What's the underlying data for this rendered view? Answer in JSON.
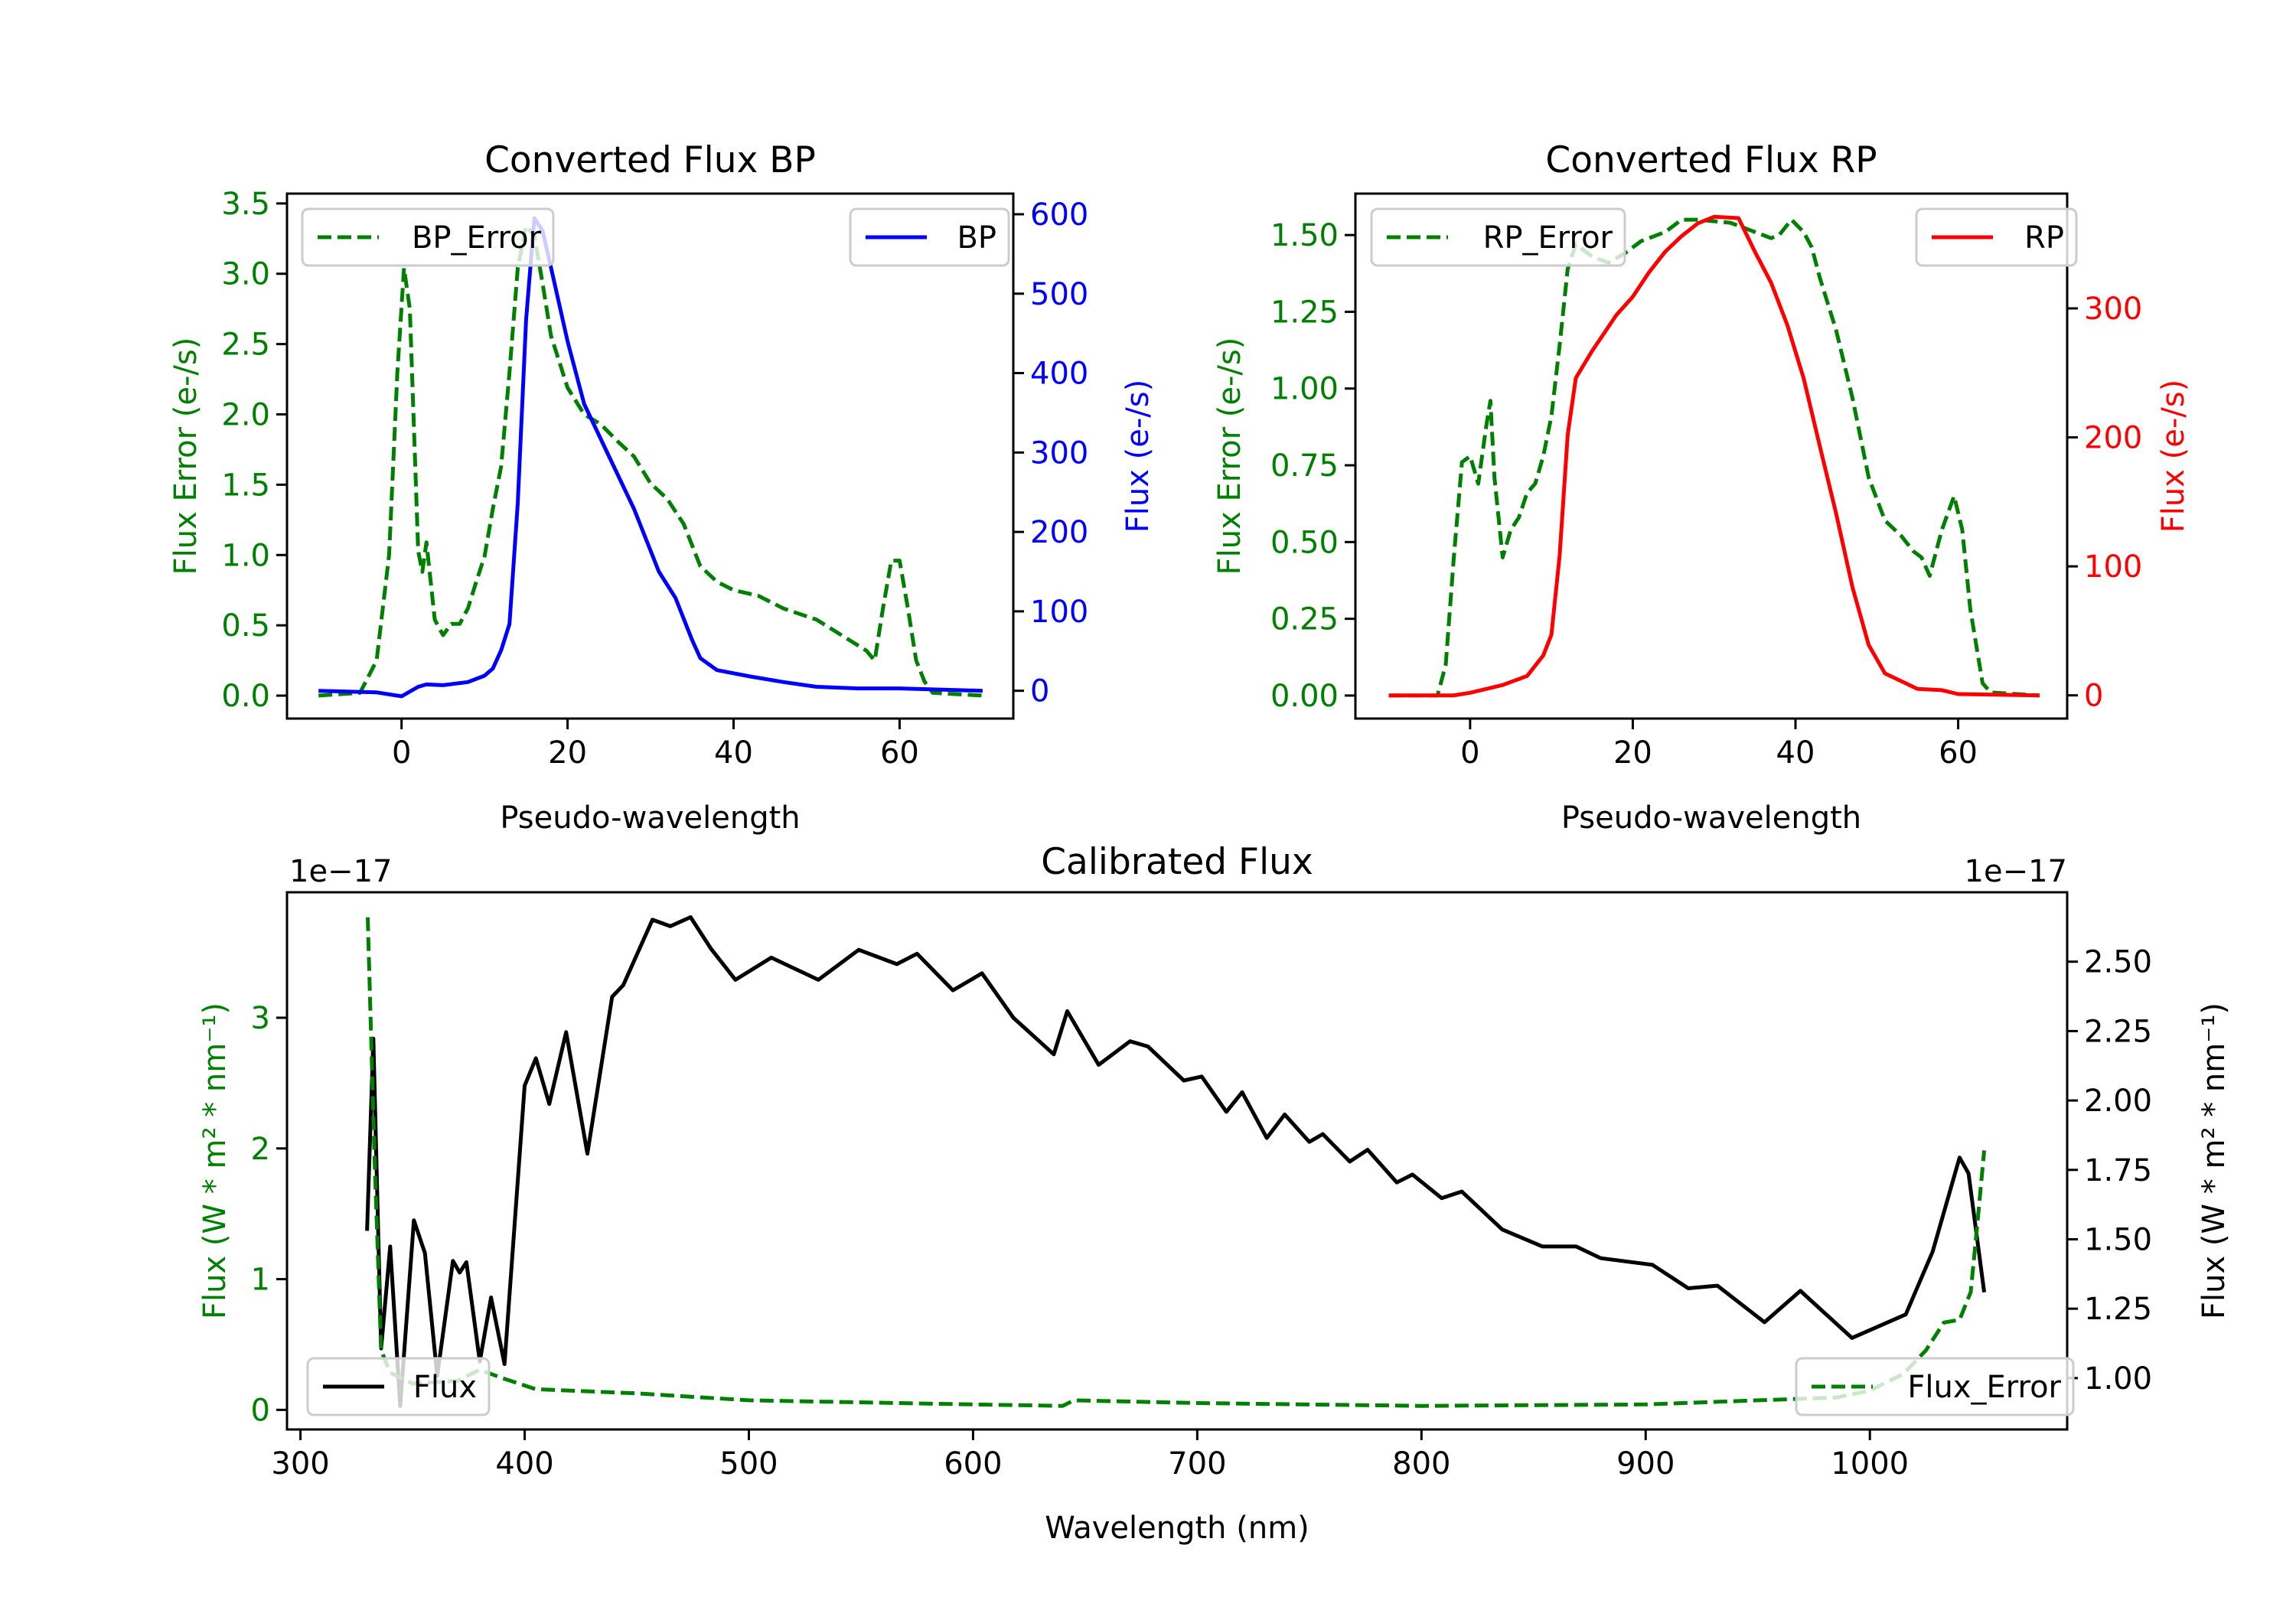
{
  "figure": {
    "panels": [
      "bp",
      "rp",
      "calibrated"
    ]
  },
  "colors": {
    "error": "#008000",
    "bp": "#0000ff",
    "rp": "#ff0000",
    "flux": "#000000",
    "axis": "#000000"
  },
  "chart_data": [
    {
      "id": "bp",
      "type": "line",
      "title": "Converted Flux BP",
      "xlabel": "Pseudo-wavelength",
      "ylabel_left": "Flux Error (e-/s)",
      "ylabel_right": "Flux (e-/s)",
      "xlim": [
        -13.8,
        73.7
      ],
      "ylim_left": [
        -0.163,
        3.57
      ],
      "ylim_right": [
        -35,
        626
      ],
      "xticks": [
        0,
        20,
        40,
        60
      ],
      "xtick_labels": [
        "0",
        "20",
        "40",
        "60"
      ],
      "yticks_left": [
        0.0,
        0.5,
        1.0,
        1.5,
        2.0,
        2.5,
        3.0,
        3.5
      ],
      "ytick_labels_left": [
        "0.0",
        "0.5",
        "1.0",
        "1.5",
        "2.0",
        "2.5",
        "3.0",
        "3.5"
      ],
      "yticks_right": [
        0,
        100,
        200,
        300,
        400,
        500,
        600
      ],
      "ytick_labels_right": [
        "0",
        "100",
        "200",
        "300",
        "400",
        "500",
        "600"
      ],
      "left_color_key": "error",
      "right_color_key": "bp",
      "grid": false,
      "series": [
        {
          "name": "BP_Error",
          "axis": "left",
          "style": "dashed",
          "color_key": "error",
          "legend": "top-left",
          "x": [
            -10,
            -5,
            -3,
            -1.5,
            -0.5,
            0.3,
            1,
            2,
            2.5,
            3,
            4,
            5,
            6,
            7,
            8,
            9,
            10,
            11,
            12,
            13,
            14,
            15,
            16,
            17,
            18,
            20,
            22,
            24,
            26,
            28,
            30,
            32,
            34,
            36,
            38,
            40,
            43,
            46,
            50,
            53,
            56,
            57,
            58,
            59,
            60,
            61,
            62,
            63,
            64,
            70
          ],
          "y": [
            0,
            0.02,
            0.25,
            1.0,
            2.3,
            3.04,
            2.75,
            1.03,
            0.88,
            1.09,
            0.54,
            0.43,
            0.51,
            0.51,
            0.62,
            0.81,
            0.99,
            1.33,
            1.63,
            2.3,
            3.04,
            3.34,
            3.27,
            2.93,
            2.56,
            2.19,
            2.0,
            1.93,
            1.81,
            1.7,
            1.51,
            1.4,
            1.22,
            0.92,
            0.81,
            0.75,
            0.71,
            0.62,
            0.54,
            0.43,
            0.32,
            0.25,
            0.62,
            0.96,
            0.96,
            0.62,
            0.25,
            0.1,
            0.02,
            0
          ]
        },
        {
          "name": "BP",
          "axis": "right",
          "style": "solid",
          "color_key": "bp",
          "legend": "top-right",
          "x": [
            -10,
            -3,
            0,
            2,
            3,
            5,
            8,
            10,
            11,
            12,
            13,
            14,
            15,
            16,
            17,
            18,
            20,
            22,
            25,
            28,
            31,
            33,
            35,
            36,
            38,
            42,
            46,
            50,
            55,
            60,
            70
          ],
          "y": [
            0,
            -2,
            -7,
            5,
            8,
            7,
            11,
            19,
            28,
            51,
            84,
            236,
            467,
            595,
            579,
            533,
            440,
            361,
            295,
            229,
            150,
            117,
            64,
            41,
            26,
            18,
            11,
            5,
            3,
            3,
            0
          ]
        }
      ]
    },
    {
      "id": "rp",
      "type": "line",
      "title": "Converted Flux RP",
      "xlabel": "Pseudo-wavelength",
      "ylabel_left": "Flux Error (e-/s)",
      "ylabel_right": "Flux (e-/s)",
      "xlim": [
        -14.1,
        73.4
      ],
      "ylim_left": [
        -0.075,
        1.635
      ],
      "ylim_right": [
        -18,
        389
      ],
      "xticks": [
        0,
        20,
        40,
        60
      ],
      "xtick_labels": [
        "0",
        "20",
        "40",
        "60"
      ],
      "yticks_left": [
        0.0,
        0.25,
        0.5,
        0.75,
        1.0,
        1.25,
        1.5
      ],
      "ytick_labels_left": [
        "0.00",
        "0.25",
        "0.50",
        "0.75",
        "1.00",
        "1.25",
        "1.50"
      ],
      "yticks_right": [
        0,
        100,
        200,
        300
      ],
      "ytick_labels_right": [
        "0",
        "100",
        "200",
        "300"
      ],
      "left_color_key": "error",
      "right_color_key": "rp",
      "grid": false,
      "series": [
        {
          "name": "RP_Error",
          "axis": "left",
          "style": "dashed",
          "color_key": "error",
          "legend": "top-left",
          "x": [
            -10,
            -4,
            -3,
            -2,
            -1,
            0,
            1,
            2,
            2.5,
            3,
            4,
            5,
            6,
            7,
            8,
            9,
            10,
            11,
            12,
            13,
            15,
            17,
            19,
            21,
            24,
            26,
            28,
            32,
            35,
            37,
            38,
            39.5,
            41,
            42,
            43,
            45,
            47,
            49,
            51,
            53,
            54.5,
            55.5,
            56.5,
            58,
            59.5,
            60.5,
            61.5,
            63,
            64,
            70
          ],
          "y": [
            0,
            0,
            0.1,
            0.45,
            0.76,
            0.78,
            0.69,
            0.88,
            0.96,
            0.71,
            0.45,
            0.54,
            0.58,
            0.66,
            0.69,
            0.78,
            0.91,
            1.14,
            1.39,
            1.47,
            1.43,
            1.41,
            1.44,
            1.48,
            1.51,
            1.55,
            1.55,
            1.54,
            1.51,
            1.49,
            1.5,
            1.55,
            1.51,
            1.46,
            1.36,
            1.19,
            0.97,
            0.71,
            0.57,
            0.52,
            0.47,
            0.45,
            0.39,
            0.54,
            0.65,
            0.54,
            0.28,
            0.04,
            0.01,
            0
          ]
        },
        {
          "name": "RP",
          "axis": "right",
          "style": "solid",
          "color_key": "rp",
          "legend": "top-right",
          "x": [
            -10,
            -2,
            0,
            4,
            7,
            9,
            10,
            11,
            12,
            13,
            15,
            18,
            20,
            22,
            24,
            26,
            28,
            30,
            33,
            35,
            37,
            39,
            41,
            43,
            45,
            47,
            49,
            51,
            53,
            55,
            58,
            60,
            70
          ],
          "y": [
            0,
            0,
            2,
            8,
            15,
            31,
            47,
            108,
            202,
            246,
            267,
            295,
            309,
            328,
            344,
            356,
            366,
            371,
            370,
            344,
            320,
            287,
            246,
            193,
            141,
            84,
            39,
            17,
            11,
            5,
            4,
            1,
            0
          ]
        }
      ]
    },
    {
      "id": "calibrated",
      "type": "line",
      "title": "Calibrated Flux",
      "xlabel": "Wavelength (nm)",
      "ylabel_left": "Flux (W * m² * nm⁻¹)",
      "ylabel_right": "Flux (W * m² * nm⁻¹)",
      "offset_left": "1e−17",
      "offset_right": "1e−17",
      "xlim": [
        294,
        1088
      ],
      "ylim_left": [
        -0.15,
        3.96
      ],
      "ylim_right": [
        0.815,
        2.75
      ],
      "xticks": [
        300,
        400,
        500,
        600,
        700,
        800,
        900,
        1000
      ],
      "xtick_labels": [
        "300",
        "400",
        "500",
        "600",
        "700",
        "800",
        "900",
        "1000"
      ],
      "yticks_left": [
        0,
        1,
        2,
        3
      ],
      "ytick_labels_left": [
        "0",
        "1",
        "2",
        "3"
      ],
      "yticks_right": [
        1.0,
        1.25,
        1.5,
        1.75,
        2.0,
        2.25,
        2.5
      ],
      "ytick_labels_right": [
        "1.00",
        "1.25",
        "1.50",
        "1.75",
        "2.00",
        "2.25",
        "2.50"
      ],
      "left_color_key": "error",
      "right_color_key": "flux",
      "grid": false,
      "units_multiplier": 1e-17,
      "series": [
        {
          "name": "Flux",
          "axis": "left",
          "style": "solid",
          "color_key": "flux",
          "legend": "bottom-left",
          "x": [
            329.7,
            332.5,
            336,
            340,
            344.5,
            350.6,
            355.5,
            361,
            368,
            371,
            374,
            380,
            385,
            391,
            400,
            405,
            411,
            418.5,
            428,
            439,
            444,
            457,
            465,
            474,
            483,
            494,
            510,
            531,
            549,
            566,
            575,
            591,
            604,
            618,
            636,
            642,
            656,
            670,
            678,
            694,
            702,
            713,
            720,
            731,
            739,
            750,
            756,
            768,
            776,
            789,
            796,
            809,
            818,
            836,
            854,
            869,
            880,
            903,
            919,
            932,
            953,
            969,
            992,
            1016,
            1028,
            1040,
            1044,
            1051
          ],
          "y": [
            1.37,
            2.84,
            0.47,
            1.25,
            0.03,
            1.45,
            1.2,
            0.26,
            1.14,
            1.05,
            1.13,
            0.37,
            0.86,
            0.35,
            2.48,
            2.69,
            2.34,
            2.89,
            1.96,
            3.16,
            3.25,
            3.75,
            3.7,
            3.77,
            3.53,
            3.29,
            3.46,
            3.29,
            3.52,
            3.41,
            3.49,
            3.21,
            3.34,
            3.0,
            2.72,
            3.05,
            2.64,
            2.82,
            2.78,
            2.52,
            2.55,
            2.28,
            2.43,
            2.08,
            2.26,
            2.05,
            2.11,
            1.9,
            1.99,
            1.74,
            1.8,
            1.62,
            1.67,
            1.38,
            1.25,
            1.25,
            1.16,
            1.11,
            0.93,
            0.95,
            0.67,
            0.91,
            0.55,
            0.73,
            1.21,
            1.93,
            1.81,
            0.9
          ]
        },
        {
          "name": "Flux_Error",
          "axis": "right",
          "style": "dashed",
          "color_key": "error",
          "legend": "bottom-right",
          "x": [
            330,
            333,
            336,
            340,
            350,
            370,
            380,
            390,
            405,
            450,
            500,
            600,
            640,
            645,
            700,
            800,
            900,
            950,
            985,
            1000,
            1015,
            1025,
            1033,
            1040,
            1045,
            1048,
            1051
          ],
          "y": [
            2.66,
            1.81,
            1.1,
            1.02,
            0.98,
            0.99,
            1.03,
            1.0,
            0.96,
            0.945,
            0.92,
            0.905,
            0.9,
            0.92,
            0.91,
            0.9,
            0.905,
            0.92,
            0.93,
            0.955,
            1.015,
            1.1,
            1.2,
            1.21,
            1.31,
            1.56,
            1.82
          ]
        }
      ]
    }
  ]
}
